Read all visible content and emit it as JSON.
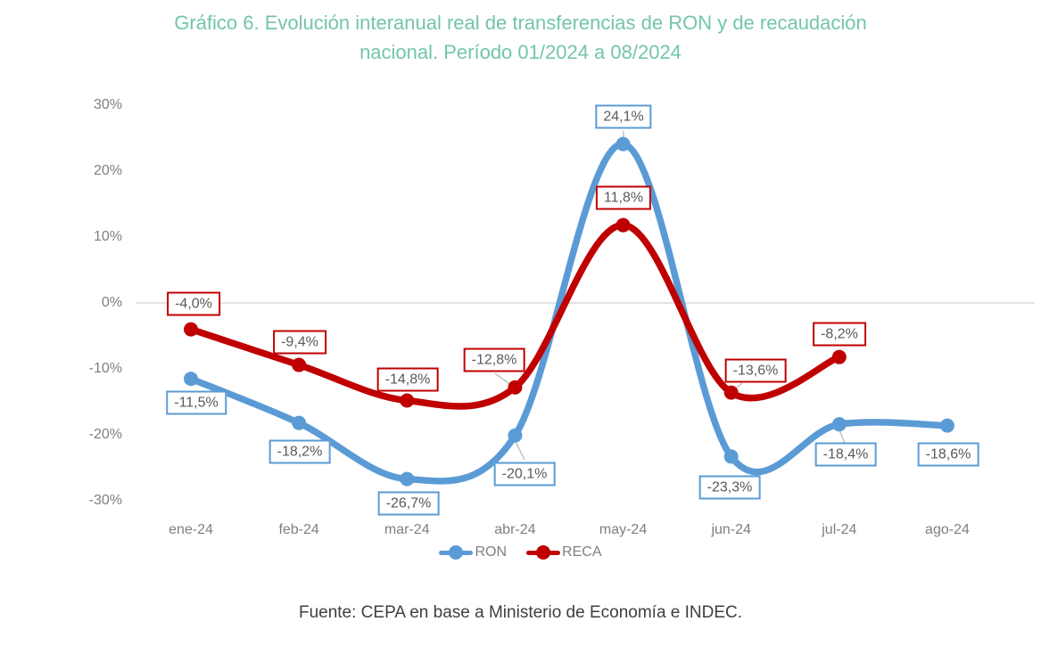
{
  "title": {
    "lines": [
      "Gráfico 6. Evolución interanual real de transferencias de RON y de recaudación",
      "nacional. Período 01/2024 a 08/2024"
    ]
  },
  "chart_data": {
    "type": "line",
    "title": "Gráfico 6. Evolución interanual real de transferencias de RON y de recaudación nacional. Período 01/2024 a 08/2024",
    "categories": [
      "ene-24",
      "feb-24",
      "mar-24",
      "abr-24",
      "may-24",
      "jun-24",
      "jul-24",
      "ago-24"
    ],
    "y_ticks": [
      "30%",
      "20%",
      "10%",
      "0%",
      "-10%",
      "-20%",
      "-30%"
    ],
    "ylim": [
      -30,
      30
    ],
    "y_unit": "%",
    "grid": "zero-line-only",
    "legend_position": "bottom",
    "series": [
      {
        "name": "RON",
        "color": "#5B9BD5",
        "values": [
          -11.5,
          -18.2,
          -26.7,
          -20.1,
          24.1,
          -23.3,
          -18.4,
          -18.6
        ],
        "labels": [
          "-11,5%",
          "-18,2%",
          "-26,7%",
          "-20,1%",
          "24,1%",
          "-23,3%",
          "-18,4%",
          "-18,6%"
        ]
      },
      {
        "name": "RECA",
        "color": "#C00000",
        "values": [
          -4.0,
          -9.4,
          -14.8,
          -12.8,
          11.8,
          -13.6,
          -8.2
        ],
        "labels": [
          "-4,0%",
          "-9,4%",
          "-14,8%",
          "-12,8%",
          "11,8%",
          "-13,6%",
          "-8,2%"
        ]
      }
    ],
    "source": "Fuente: CEPA en base a Ministerio de Economía e INDEC.",
    "colors": {
      "title": "#73C6A8",
      "axis_text": "#7F7F7F",
      "label_text": "#595959",
      "gridline": "#D9D9D9",
      "leader_line": "#BFBFBF",
      "source_text": "#3F3F3F"
    }
  }
}
